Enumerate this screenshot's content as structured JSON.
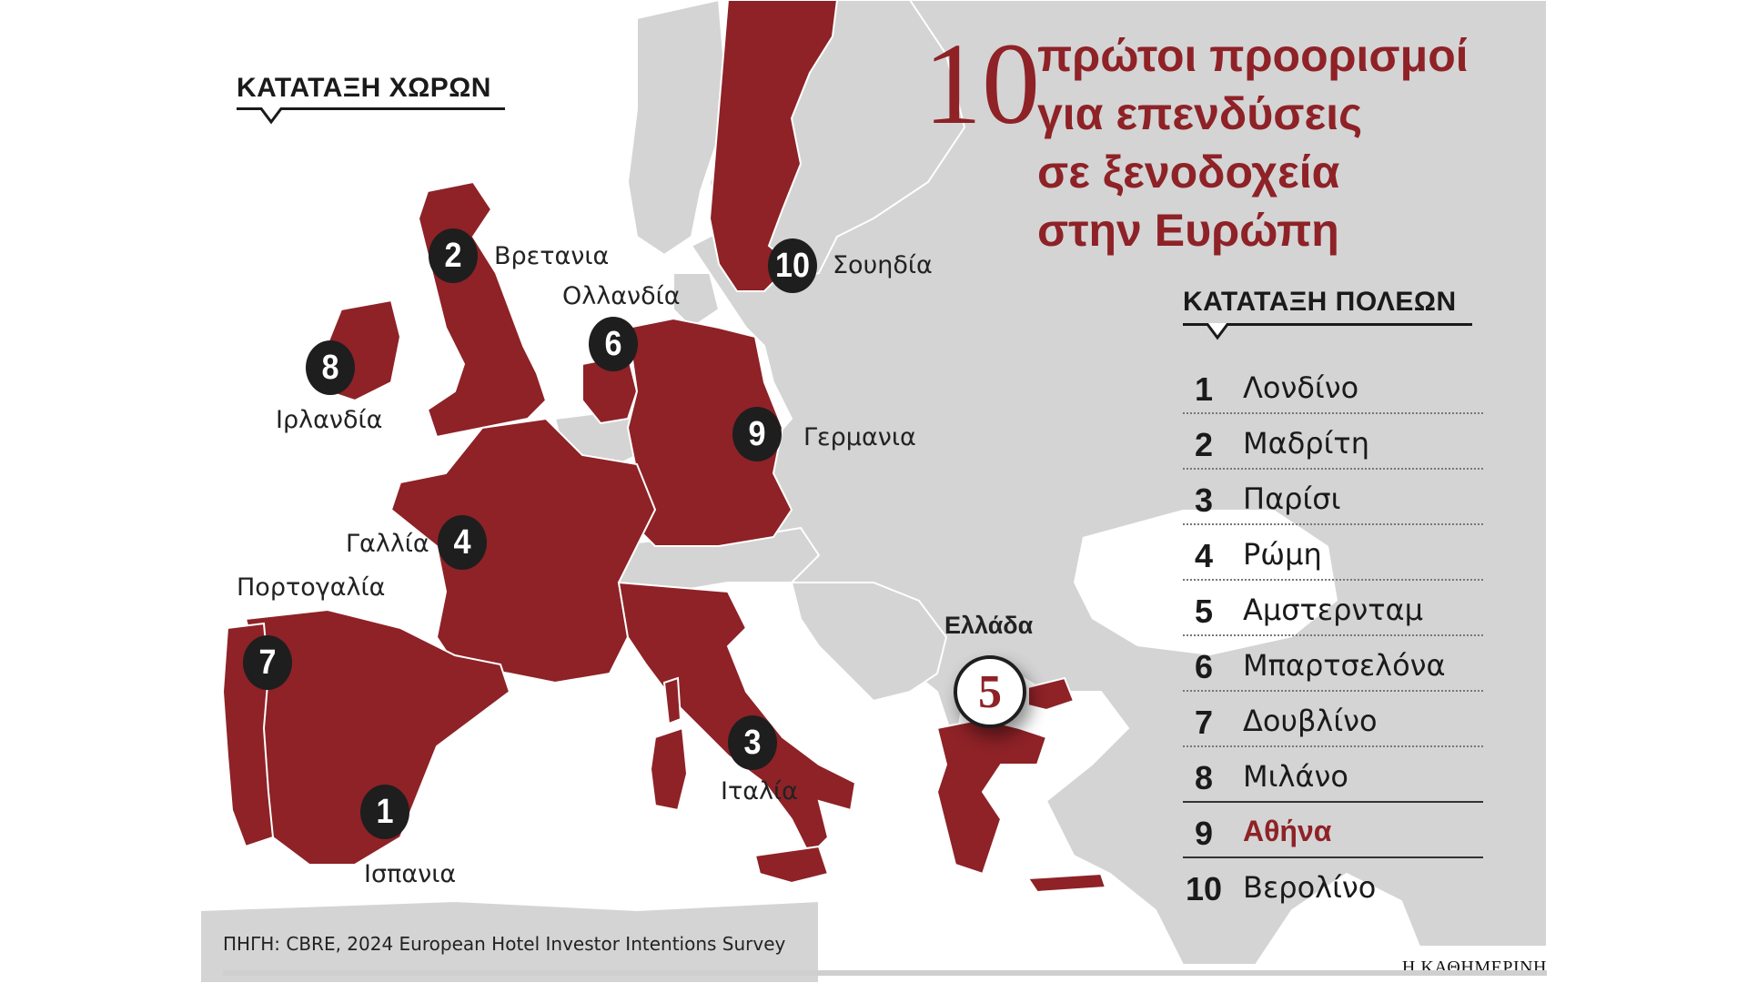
{
  "colors": {
    "accent": "#8e2227",
    "land_other": "#d4d4d4",
    "sea": "#ffffff",
    "badge": "#1e1e1e",
    "text": "#1a1a1a"
  },
  "title": {
    "number": "10",
    "lines": [
      "πρώτοι προορισμοί",
      "για επενδύσεις",
      "σε ξενοδοχεία",
      "στην Ευρώπη"
    ]
  },
  "countries_heading": "ΚΑΤΑΤΑΞΗ ΧΩΡΩΝ",
  "countries": [
    {
      "rank": "1",
      "name": "Ισπανια"
    },
    {
      "rank": "2",
      "name": "Βρετανια"
    },
    {
      "rank": "3",
      "name": "Ιταλία"
    },
    {
      "rank": "4",
      "name": "Γαλλία"
    },
    {
      "rank": "5",
      "name": "Ελλάδα"
    },
    {
      "rank": "6",
      "name": "Ολλανδία"
    },
    {
      "rank": "7",
      "name": "Πορτογαλία"
    },
    {
      "rank": "8",
      "name": "Ιρλανδία"
    },
    {
      "rank": "9",
      "name": "Γερμανια"
    },
    {
      "rank": "10",
      "name": "Σουηδία"
    }
  ],
  "cities_heading": "ΚΑΤΑΤΑΞΗ ΠΟΛΕΩΝ",
  "cities": [
    {
      "rank": "1",
      "name": "Λονδίνο"
    },
    {
      "rank": "2",
      "name": "Μαδρίτη"
    },
    {
      "rank": "3",
      "name": "Παρίσι"
    },
    {
      "rank": "4",
      "name": "Ρώμη"
    },
    {
      "rank": "5",
      "name": "Αμστερνταμ"
    },
    {
      "rank": "6",
      "name": "Μπαρτσελόνα"
    },
    {
      "rank": "7",
      "name": "Δουβλίνο"
    },
    {
      "rank": "8",
      "name": "Μιλάνο"
    },
    {
      "rank": "9",
      "name": "Αθήνα",
      "highlight": true
    },
    {
      "rank": "10",
      "name": "Βερολίνο"
    }
  ],
  "source": "ΠΗΓΗ: CBRE, 2024 European Hotel Investor Intentions Survey",
  "brand": "Η ΚΑΘΗΜΕΡΙΝΗ"
}
